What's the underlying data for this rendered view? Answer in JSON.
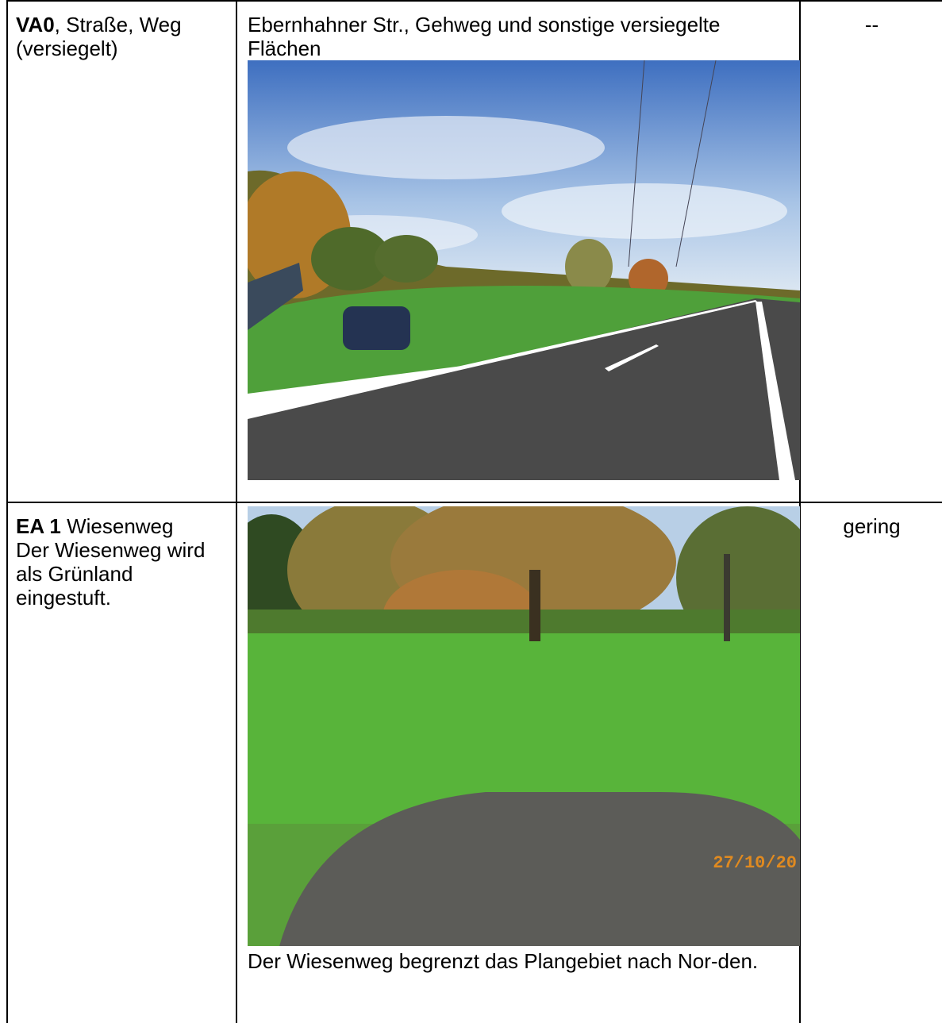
{
  "table": {
    "rows": [
      {
        "code": "VA0",
        "name": ", Straße, Weg (versiegelt)",
        "description": "Ebernhahner Str., Gehweg und sonstige versiegelte Flächen",
        "rating": "--"
      },
      {
        "code": "EA 1",
        "name": "Wiesenweg",
        "note": "Der Wiesenweg wird als Grünland eingestuft.",
        "photo_stamp": "27/10/20",
        "caption": "Der Wiesenweg begrenzt das Plangebiet nach Nor-den.",
        "rating": "gering"
      }
    ]
  }
}
